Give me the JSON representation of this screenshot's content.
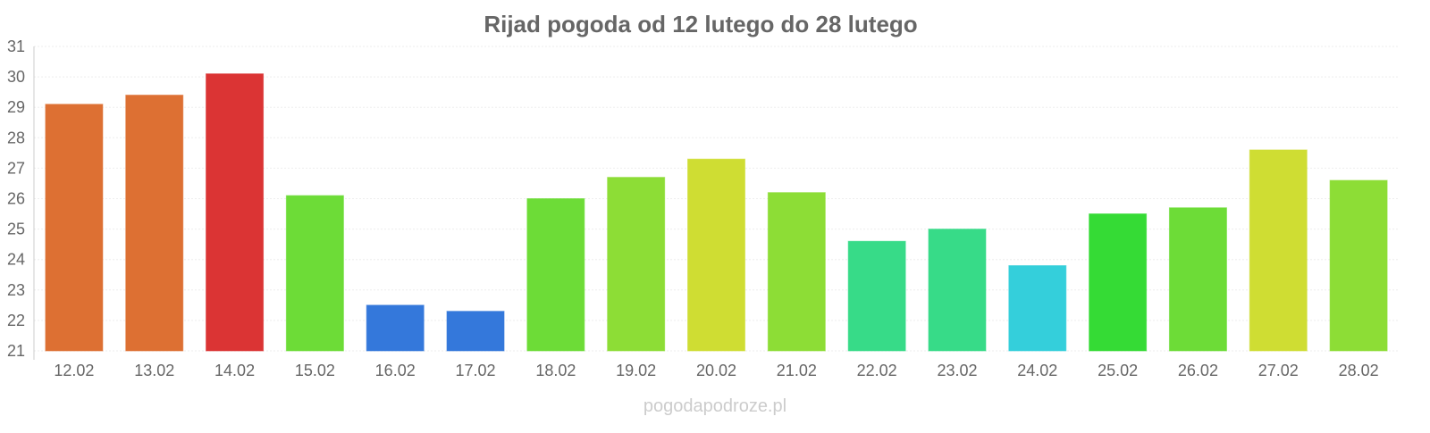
{
  "chart_data": {
    "type": "bar",
    "title": "Rijad pogoda od 12 lutego do 28 lutego",
    "xlabel": "",
    "ylabel": "",
    "ylim": [
      21,
      31
    ],
    "yticks": [
      "21",
      "22",
      "23",
      "24",
      "25",
      "26",
      "27",
      "28",
      "29",
      "30",
      "31"
    ],
    "grid": true,
    "categories": [
      "12.02",
      "13.02",
      "14.02",
      "15.02",
      "16.02",
      "17.02",
      "18.02",
      "19.02",
      "20.02",
      "21.02",
      "22.02",
      "23.02",
      "24.02",
      "25.02",
      "26.02",
      "27.02",
      "28.02"
    ],
    "values": [
      29.1,
      29.4,
      30.1,
      26.1,
      22.5,
      22.3,
      26.0,
      26.7,
      27.3,
      26.2,
      24.6,
      25.0,
      23.8,
      25.5,
      25.7,
      27.6,
      26.6
    ],
    "colors": [
      "#dd7033",
      "#dd7033",
      "#db3434",
      "#6ddc37",
      "#3478db",
      "#3478db",
      "#6ddc37",
      "#8ddd36",
      "#cfdd33",
      "#8ddd36",
      "#37db88",
      "#37db88",
      "#34cfdb",
      "#35db35",
      "#6ddc37",
      "#cfdd33",
      "#8ddd36"
    ]
  },
  "watermark": "pogodapodroze.pl"
}
